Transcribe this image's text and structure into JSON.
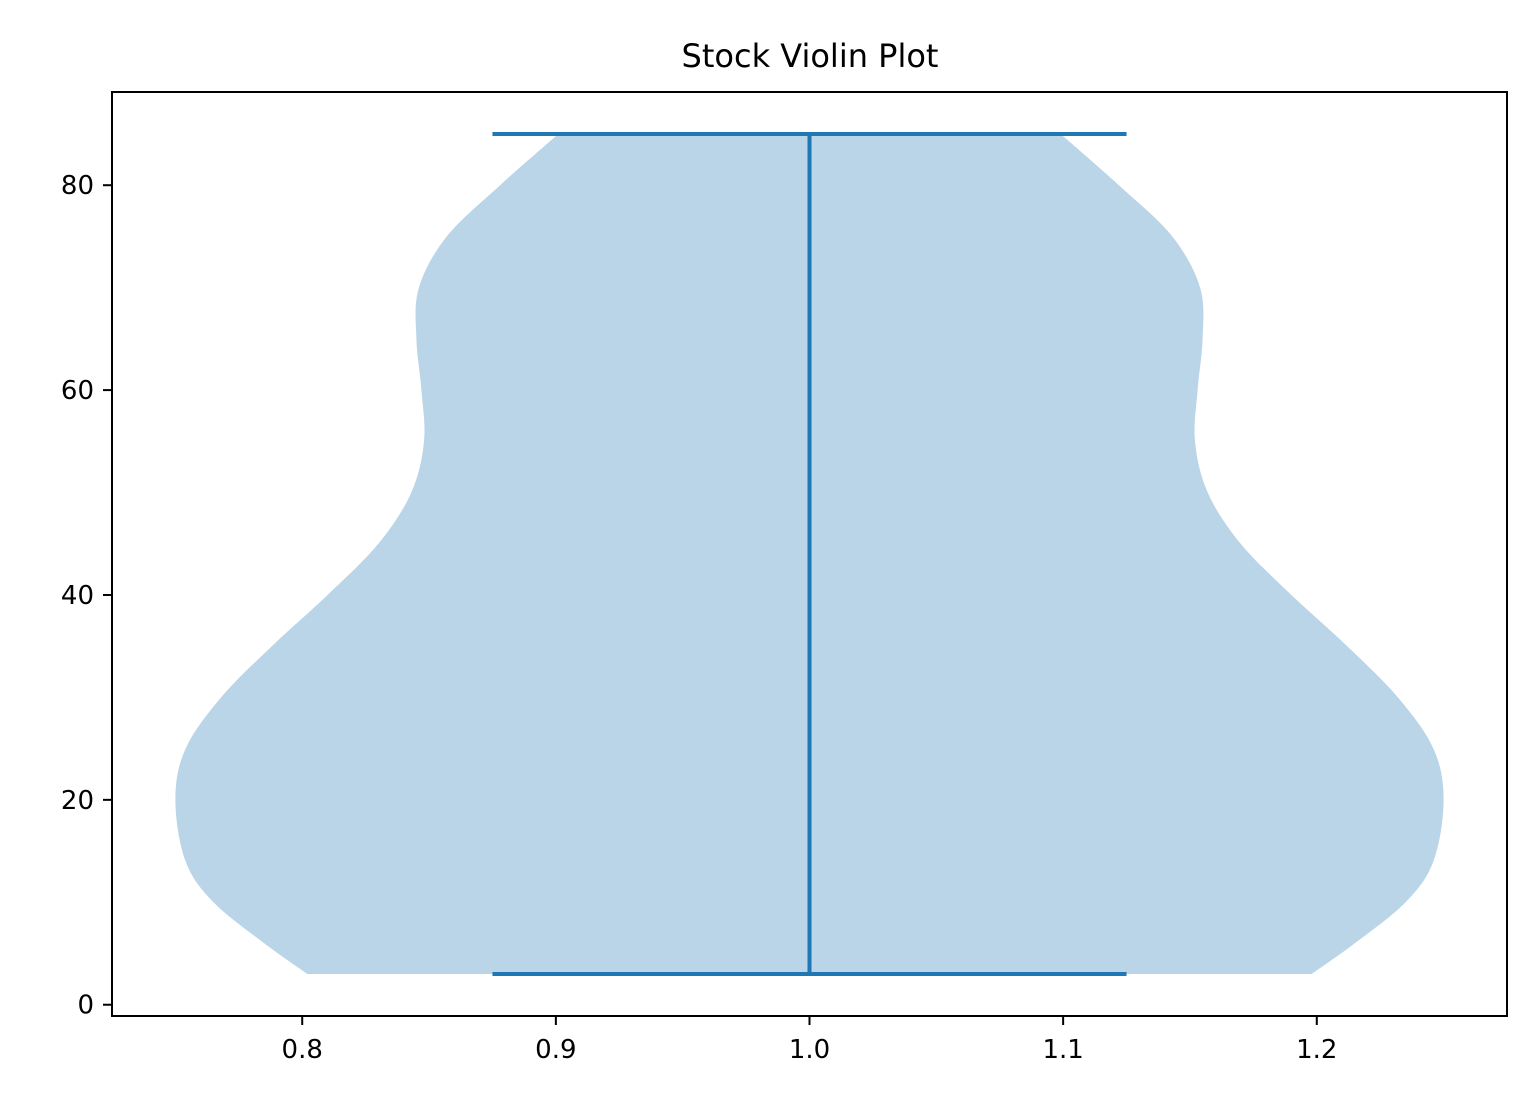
{
  "chart_data": {
    "type": "violin",
    "title": "Stock Violin Plot",
    "xlabel": "",
    "ylabel": "",
    "xlim": [
      0.725,
      1.275
    ],
    "ylim": [
      -1.1,
      89.1
    ],
    "xticks": [
      0.8,
      0.9,
      1.0,
      1.1,
      1.2
    ],
    "xtick_labels": [
      "0.8",
      "0.9",
      "1.0",
      "1.1",
      "1.2"
    ],
    "yticks": [
      0,
      20,
      40,
      60,
      80
    ],
    "ytick_labels": [
      "0",
      "20",
      "40",
      "60",
      "80"
    ],
    "grid": false,
    "position": 1.0,
    "min": 3,
    "max": 85,
    "cap_halfwidth": 0.125,
    "density_profile": [
      {
        "y": 3,
        "halfwidth": 0.198
      },
      {
        "y": 6,
        "halfwidth": 0.215
      },
      {
        "y": 10,
        "halfwidth": 0.235
      },
      {
        "y": 14,
        "halfwidth": 0.246
      },
      {
        "y": 20,
        "halfwidth": 0.25
      },
      {
        "y": 25,
        "halfwidth": 0.246
      },
      {
        "y": 30,
        "halfwidth": 0.232
      },
      {
        "y": 35,
        "halfwidth": 0.212
      },
      {
        "y": 40,
        "halfwidth": 0.19
      },
      {
        "y": 45,
        "halfwidth": 0.17
      },
      {
        "y": 50,
        "halfwidth": 0.157
      },
      {
        "y": 55,
        "halfwidth": 0.152
      },
      {
        "y": 60,
        "halfwidth": 0.153
      },
      {
        "y": 65,
        "halfwidth": 0.155
      },
      {
        "y": 70,
        "halfwidth": 0.154
      },
      {
        "y": 75,
        "halfwidth": 0.143
      },
      {
        "y": 80,
        "halfwidth": 0.122
      },
      {
        "y": 85,
        "halfwidth": 0.099
      }
    ],
    "colors": {
      "body": "#bad5e8",
      "lines": "#1f77b4",
      "axes": "#000000"
    }
  }
}
